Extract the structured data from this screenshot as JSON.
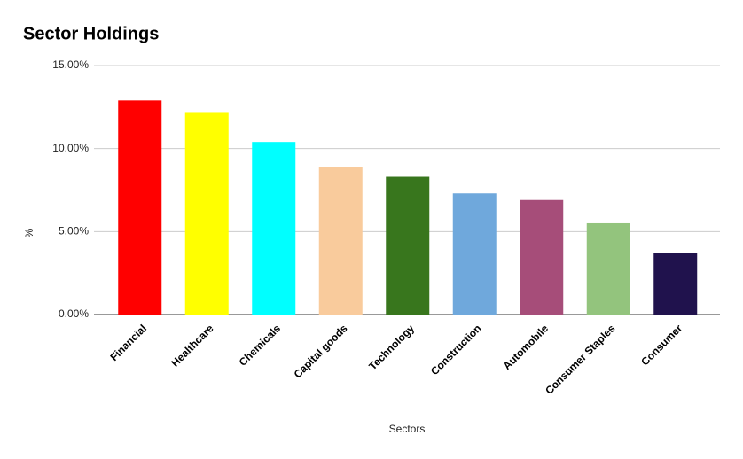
{
  "chart_data": {
    "type": "bar",
    "title": "Sector Holdings",
    "x_label": "Sectors",
    "y_label": "%",
    "categories": [
      "Financial",
      "Healthcare",
      "Chemicals",
      "Capital goods",
      "Technology",
      "Construction",
      "Automobile",
      "Consumer Staples",
      "Consumer"
    ],
    "values": [
      12.9,
      12.2,
      10.4,
      8.9,
      8.3,
      7.3,
      6.9,
      5.5,
      3.7
    ],
    "colors": [
      "#ff0000",
      "#ffff00",
      "#00ffff",
      "#f9cb9c",
      "#38761d",
      "#6fa8dc",
      "#a64d79",
      "#93c47d",
      "#20124d"
    ],
    "ylim": [
      0,
      15
    ],
    "yticks": [
      {
        "value": 0,
        "label": "0.00%"
      },
      {
        "value": 5,
        "label": "5.00%"
      },
      {
        "value": 10,
        "label": "10.00%"
      },
      {
        "value": 15,
        "label": "15.00%"
      }
    ],
    "grid": true
  }
}
